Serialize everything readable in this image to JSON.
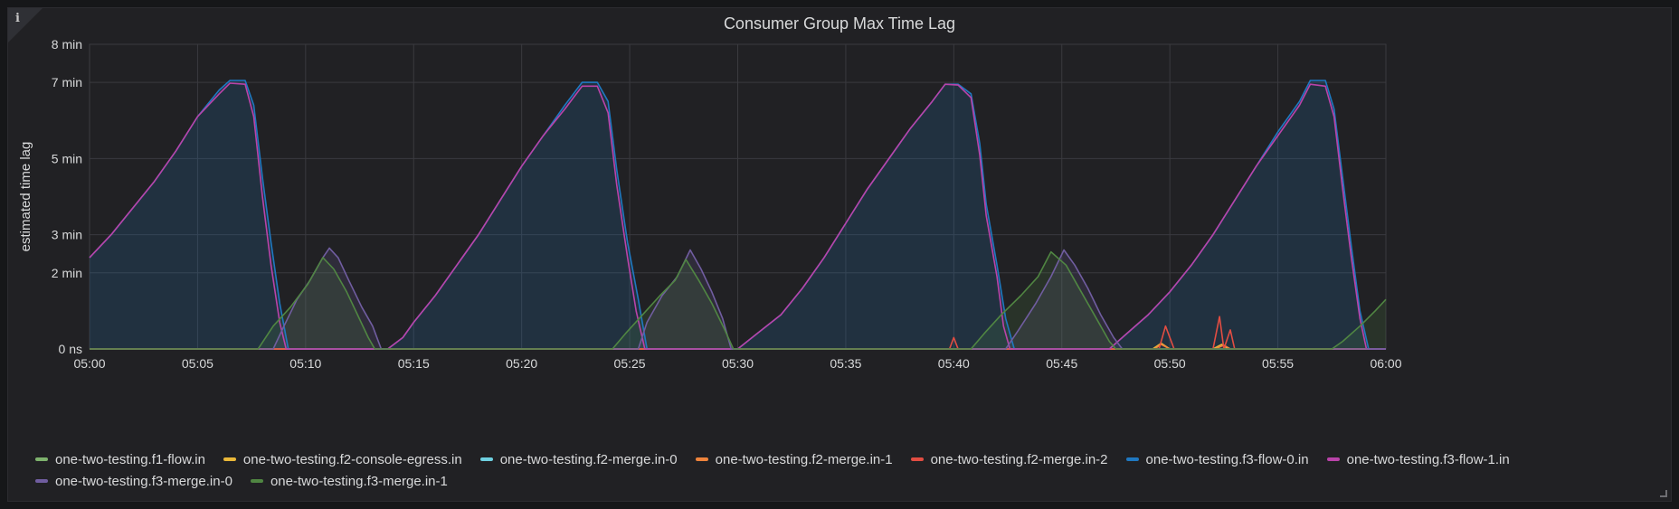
{
  "panel": {
    "info_icon": "info-icon",
    "title": "Consumer Group Max Time Lag"
  },
  "chart_data": {
    "type": "area",
    "title": "Consumer Group Max Time Lag",
    "ylabel": "estimated time lag",
    "xlabel": "",
    "x_unit": "minute of hour (05:xx)",
    "xlim": [
      0,
      60
    ],
    "ylim": [
      0,
      8
    ],
    "y_unit": "min",
    "x_ticks": [
      {
        "v": 0,
        "label": "05:00"
      },
      {
        "v": 5,
        "label": "05:05"
      },
      {
        "v": 10,
        "label": "05:10"
      },
      {
        "v": 15,
        "label": "05:15"
      },
      {
        "v": 20,
        "label": "05:20"
      },
      {
        "v": 25,
        "label": "05:25"
      },
      {
        "v": 30,
        "label": "05:30"
      },
      {
        "v": 35,
        "label": "05:35"
      },
      {
        "v": 40,
        "label": "05:40"
      },
      {
        "v": 45,
        "label": "05:45"
      },
      {
        "v": 50,
        "label": "05:50"
      },
      {
        "v": 55,
        "label": "05:55"
      },
      {
        "v": 60,
        "label": "06:00"
      }
    ],
    "y_ticks": [
      {
        "v": 0,
        "label": "0 ns"
      },
      {
        "v": 2,
        "label": "2 min"
      },
      {
        "v": 3,
        "label": "3 min"
      },
      {
        "v": 5,
        "label": "5 min"
      },
      {
        "v": 7,
        "label": "7 min"
      },
      {
        "v": 8,
        "label": "8 min"
      }
    ],
    "grid": true,
    "legend_position": "bottom",
    "series": [
      {
        "name": "one-two-testing.f1-flow.in",
        "color": "#7eb26d",
        "fill": false,
        "points": [
          [
            0,
            0
          ],
          [
            60,
            0
          ]
        ]
      },
      {
        "name": "one-two-testing.f2-console-egress.in",
        "color": "#eab839",
        "fill": false,
        "points": [
          [
            0,
            0
          ],
          [
            49.2,
            0
          ],
          [
            49.6,
            0.15
          ],
          [
            50.0,
            0
          ],
          [
            52.0,
            0
          ],
          [
            52.4,
            0.12
          ],
          [
            52.7,
            0
          ],
          [
            60,
            0
          ]
        ]
      },
      {
        "name": "one-two-testing.f2-merge.in-0",
        "color": "#6ed0e0",
        "fill": false,
        "points": [
          [
            0,
            0
          ],
          [
            60,
            0
          ]
        ]
      },
      {
        "name": "one-two-testing.f2-merge.in-1",
        "color": "#ef843c",
        "fill": false,
        "points": [
          [
            0,
            0
          ],
          [
            49.3,
            0
          ],
          [
            49.6,
            0.12
          ],
          [
            50.0,
            0
          ],
          [
            52.1,
            0
          ],
          [
            52.5,
            0.1
          ],
          [
            52.8,
            0
          ],
          [
            60,
            0
          ]
        ]
      },
      {
        "name": "one-two-testing.f2-merge.in-2",
        "color": "#e24d42",
        "fill": false,
        "points": [
          [
            0,
            0
          ],
          [
            39.8,
            0
          ],
          [
            40.0,
            0.3
          ],
          [
            40.2,
            0
          ],
          [
            49.5,
            0
          ],
          [
            49.8,
            0.6
          ],
          [
            50.2,
            0
          ],
          [
            52.0,
            0
          ],
          [
            52.3,
            0.85
          ],
          [
            52.5,
            0
          ],
          [
            52.8,
            0.5
          ],
          [
            53.0,
            0
          ],
          [
            60,
            0
          ]
        ]
      },
      {
        "name": "one-two-testing.f3-flow-0.in",
        "color": "#1f78c1",
        "fill": true,
        "points": [
          [
            0,
            2.4
          ],
          [
            1,
            3.0
          ],
          [
            2,
            3.7
          ],
          [
            3,
            4.4
          ],
          [
            4,
            5.2
          ],
          [
            5,
            6.1
          ],
          [
            6,
            6.8
          ],
          [
            6.5,
            7.05
          ],
          [
            7.2,
            7.05
          ],
          [
            7.6,
            6.4
          ],
          [
            8,
            4.5
          ],
          [
            8.4,
            2.8
          ],
          [
            8.8,
            1.2
          ],
          [
            9.2,
            0
          ],
          [
            13.8,
            0
          ],
          [
            14.5,
            0.3
          ],
          [
            15,
            0.7
          ],
          [
            16,
            1.4
          ],
          [
            17,
            2.2
          ],
          [
            18,
            3.0
          ],
          [
            19,
            3.9
          ],
          [
            20,
            4.8
          ],
          [
            21,
            5.6
          ],
          [
            22,
            6.4
          ],
          [
            22.8,
            7.0
          ],
          [
            23.5,
            7.0
          ],
          [
            24,
            6.5
          ],
          [
            24.4,
            4.7
          ],
          [
            24.9,
            2.8
          ],
          [
            25.4,
            1.3
          ],
          [
            25.8,
            0
          ],
          [
            30,
            0
          ],
          [
            31,
            0.45
          ],
          [
            32,
            0.9
          ],
          [
            33,
            1.6
          ],
          [
            34,
            2.4
          ],
          [
            35,
            3.3
          ],
          [
            36,
            4.2
          ],
          [
            37,
            5.0
          ],
          [
            38,
            5.8
          ],
          [
            39,
            6.5
          ],
          [
            39.6,
            6.95
          ],
          [
            40.2,
            6.95
          ],
          [
            40.8,
            6.7
          ],
          [
            41.2,
            5.4
          ],
          [
            41.5,
            3.8
          ],
          [
            42,
            2.2
          ],
          [
            42.4,
            0.8
          ],
          [
            42.8,
            0
          ],
          [
            47.2,
            0
          ],
          [
            48,
            0.4
          ],
          [
            49,
            0.9
          ],
          [
            50,
            1.5
          ],
          [
            51,
            2.2
          ],
          [
            52,
            3.0
          ],
          [
            53,
            3.9
          ],
          [
            54,
            4.8
          ],
          [
            55,
            5.7
          ],
          [
            56,
            6.5
          ],
          [
            56.5,
            7.05
          ],
          [
            57.2,
            7.05
          ],
          [
            57.6,
            6.3
          ],
          [
            58,
            4.5
          ],
          [
            58.4,
            2.7
          ],
          [
            58.8,
            1.0
          ],
          [
            59.2,
            0
          ],
          [
            60,
            0
          ]
        ]
      },
      {
        "name": "one-two-testing.f3-flow-1.in",
        "color": "#ba43a9",
        "fill": false,
        "points": [
          [
            0,
            2.4
          ],
          [
            1,
            3.0
          ],
          [
            2,
            3.7
          ],
          [
            3,
            4.4
          ],
          [
            4,
            5.2
          ],
          [
            5,
            6.1
          ],
          [
            6,
            6.7
          ],
          [
            6.5,
            6.98
          ],
          [
            7.2,
            6.95
          ],
          [
            7.6,
            6.1
          ],
          [
            8,
            4.0
          ],
          [
            8.4,
            2.2
          ],
          [
            8.8,
            0.7
          ],
          [
            9.1,
            0
          ],
          [
            13.8,
            0
          ],
          [
            14.5,
            0.3
          ],
          [
            15,
            0.7
          ],
          [
            16,
            1.4
          ],
          [
            17,
            2.2
          ],
          [
            18,
            3.0
          ],
          [
            19,
            3.9
          ],
          [
            20,
            4.8
          ],
          [
            21,
            5.6
          ],
          [
            22,
            6.3
          ],
          [
            22.8,
            6.9
          ],
          [
            23.5,
            6.9
          ],
          [
            24,
            6.2
          ],
          [
            24.4,
            4.3
          ],
          [
            24.9,
            2.4
          ],
          [
            25.3,
            1.0
          ],
          [
            25.7,
            0
          ],
          [
            30,
            0
          ],
          [
            31,
            0.45
          ],
          [
            32,
            0.9
          ],
          [
            33,
            1.6
          ],
          [
            34,
            2.4
          ],
          [
            35,
            3.3
          ],
          [
            36,
            4.2
          ],
          [
            37,
            5.0
          ],
          [
            38,
            5.8
          ],
          [
            39,
            6.5
          ],
          [
            39.6,
            6.95
          ],
          [
            40.2,
            6.93
          ],
          [
            40.8,
            6.6
          ],
          [
            41.2,
            5.1
          ],
          [
            41.5,
            3.5
          ],
          [
            42,
            1.9
          ],
          [
            42.3,
            0.6
          ],
          [
            42.6,
            0
          ],
          [
            47.2,
            0
          ],
          [
            48,
            0.4
          ],
          [
            49,
            0.9
          ],
          [
            50,
            1.5
          ],
          [
            51,
            2.2
          ],
          [
            52,
            3.0
          ],
          [
            53,
            3.9
          ],
          [
            54,
            4.8
          ],
          [
            55,
            5.6
          ],
          [
            56,
            6.4
          ],
          [
            56.5,
            6.95
          ],
          [
            57.2,
            6.9
          ],
          [
            57.6,
            6.1
          ],
          [
            58,
            4.2
          ],
          [
            58.4,
            2.4
          ],
          [
            58.8,
            0.8
          ],
          [
            59.1,
            0
          ],
          [
            60,
            0
          ]
        ]
      },
      {
        "name": "one-two-testing.f3-merge.in-0",
        "color": "#705da0",
        "fill": true,
        "points": [
          [
            0,
            0
          ],
          [
            8.5,
            0
          ],
          [
            9,
            0.6
          ],
          [
            9.6,
            1.3
          ],
          [
            10.2,
            1.8
          ],
          [
            10.8,
            2.4
          ],
          [
            11.1,
            2.65
          ],
          [
            11.5,
            2.4
          ],
          [
            12,
            1.8
          ],
          [
            12.6,
            1.1
          ],
          [
            13.1,
            0.6
          ],
          [
            13.5,
            0
          ],
          [
            25.4,
            0
          ],
          [
            25.8,
            0.7
          ],
          [
            26.5,
            1.4
          ],
          [
            27.2,
            1.9
          ],
          [
            27.8,
            2.6
          ],
          [
            28.3,
            2.1
          ],
          [
            28.8,
            1.5
          ],
          [
            29.3,
            0.8
          ],
          [
            29.7,
            0
          ],
          [
            42.4,
            0
          ],
          [
            43,
            0.5
          ],
          [
            43.8,
            1.2
          ],
          [
            44.5,
            1.9
          ],
          [
            45.1,
            2.6
          ],
          [
            45.6,
            2.2
          ],
          [
            46.2,
            1.6
          ],
          [
            46.8,
            0.9
          ],
          [
            47.4,
            0.3
          ],
          [
            47.8,
            0
          ],
          [
            60,
            0
          ]
        ]
      },
      {
        "name": "one-two-testing.f3-merge.in-1",
        "color": "#508642",
        "fill": true,
        "points": [
          [
            0,
            0
          ],
          [
            7.8,
            0
          ],
          [
            8.5,
            0.6
          ],
          [
            9.3,
            1.1
          ],
          [
            10.1,
            1.7
          ],
          [
            10.8,
            2.4
          ],
          [
            11.3,
            2.1
          ],
          [
            11.9,
            1.5
          ],
          [
            12.4,
            0.9
          ],
          [
            12.9,
            0.3
          ],
          [
            13.2,
            0
          ],
          [
            24.2,
            0
          ],
          [
            24.8,
            0.4
          ],
          [
            25.6,
            0.9
          ],
          [
            26.4,
            1.4
          ],
          [
            27.1,
            1.8
          ],
          [
            27.6,
            2.35
          ],
          [
            28.2,
            1.8
          ],
          [
            28.8,
            1.2
          ],
          [
            29.4,
            0.5
          ],
          [
            29.8,
            0
          ],
          [
            40.8,
            0
          ],
          [
            41.4,
            0.4
          ],
          [
            42.2,
            0.9
          ],
          [
            43.1,
            1.4
          ],
          [
            43.9,
            1.9
          ],
          [
            44.5,
            2.55
          ],
          [
            45.2,
            2.2
          ],
          [
            45.9,
            1.5
          ],
          [
            46.6,
            0.8
          ],
          [
            47.2,
            0.2
          ],
          [
            47.5,
            0
          ],
          [
            57.5,
            0
          ],
          [
            58,
            0.2
          ],
          [
            58.8,
            0.6
          ],
          [
            59.5,
            1.0
          ],
          [
            60,
            1.3
          ]
        ]
      }
    ]
  }
}
